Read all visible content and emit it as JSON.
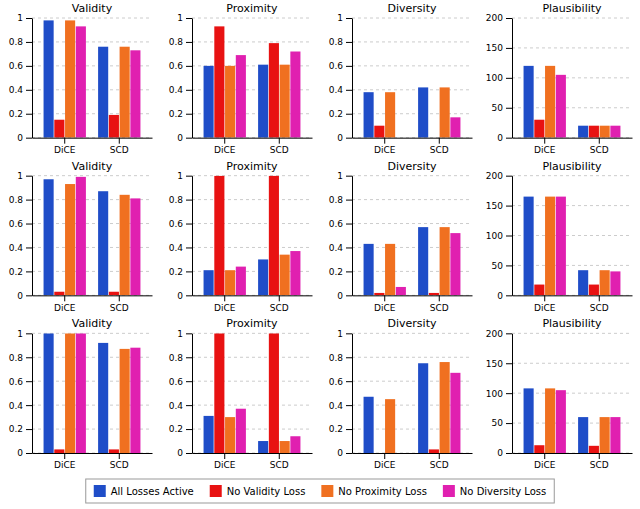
{
  "chart_data": [
    {
      "type": "bar",
      "title": "Validity",
      "categories": [
        "DiCE",
        "SCD"
      ],
      "series": [
        {
          "name": "All Losses Active",
          "color": "#1f4dc8",
          "values": [
            0.98,
            0.76
          ]
        },
        {
          "name": "No Validity Loss",
          "color": "#e81212",
          "values": [
            0.15,
            0.19
          ]
        },
        {
          "name": "No Proximity Loss",
          "color": "#f07020",
          "values": [
            0.98,
            0.76
          ]
        },
        {
          "name": "No Diversity Loss",
          "color": "#e020b0",
          "values": [
            0.93,
            0.73
          ]
        }
      ],
      "ylim": [
        0,
        1
      ],
      "yticks": [
        0,
        0.2,
        0.4,
        0.6,
        0.8,
        1
      ],
      "grid": true,
      "legend": "bottom"
    },
    {
      "type": "bar",
      "title": "Proximity",
      "categories": [
        "DiCE",
        "SCD"
      ],
      "series": [
        {
          "color": "#1f4dc8",
          "values": [
            0.6,
            0.61
          ]
        },
        {
          "color": "#e81212",
          "values": [
            0.93,
            0.79
          ]
        },
        {
          "color": "#f07020",
          "values": [
            0.6,
            0.61
          ]
        },
        {
          "color": "#e020b0",
          "values": [
            0.69,
            0.72
          ]
        }
      ],
      "ylim": [
        0,
        1
      ],
      "yticks": [
        0,
        0.2,
        0.4,
        0.6,
        0.8,
        1
      ],
      "grid": true
    },
    {
      "type": "bar",
      "title": "Diversity",
      "categories": [
        "DiCE",
        "SCD"
      ],
      "series": [
        {
          "color": "#1f4dc8",
          "values": [
            0.38,
            0.42
          ]
        },
        {
          "color": "#e81212",
          "values": [
            0.1,
            0.0
          ]
        },
        {
          "color": "#f07020",
          "values": [
            0.38,
            0.42
          ]
        },
        {
          "color": "#e020b0",
          "values": [
            0.0,
            0.17
          ]
        }
      ],
      "ylim": [
        0,
        1
      ],
      "yticks": [
        0,
        0.2,
        0.4,
        0.6,
        0.8,
        1
      ],
      "grid": true
    },
    {
      "type": "bar",
      "title": "Plausibility",
      "categories": [
        "DiCE",
        "SCD"
      ],
      "series": [
        {
          "color": "#1f4dc8",
          "values": [
            120,
            20
          ]
        },
        {
          "color": "#e81212",
          "values": [
            30,
            20
          ]
        },
        {
          "color": "#f07020",
          "values": [
            120,
            20
          ]
        },
        {
          "color": "#e020b0",
          "values": [
            105,
            20
          ]
        }
      ],
      "ylim": [
        0,
        200
      ],
      "yticks": [
        0,
        50,
        100,
        150,
        200
      ],
      "grid": true
    },
    {
      "type": "bar",
      "title": "Validity",
      "categories": [
        "DiCE",
        "SCD"
      ],
      "series": [
        {
          "color": "#1f4dc8",
          "values": [
            0.97,
            0.87
          ]
        },
        {
          "color": "#e81212",
          "values": [
            0.03,
            0.03
          ]
        },
        {
          "color": "#f07020",
          "values": [
            0.93,
            0.84
          ]
        },
        {
          "color": "#e020b0",
          "values": [
            0.99,
            0.81
          ]
        }
      ],
      "ylim": [
        0,
        1
      ],
      "yticks": [
        0,
        0.2,
        0.4,
        0.6,
        0.8,
        1
      ],
      "grid": true
    },
    {
      "type": "bar",
      "title": "Proximity",
      "categories": [
        "DiCE",
        "SCD"
      ],
      "series": [
        {
          "color": "#1f4dc8",
          "values": [
            0.21,
            0.3
          ]
        },
        {
          "color": "#e81212",
          "values": [
            1.0,
            1.0
          ]
        },
        {
          "color": "#f07020",
          "values": [
            0.21,
            0.34
          ]
        },
        {
          "color": "#e020b0",
          "values": [
            0.24,
            0.37
          ]
        }
      ],
      "ylim": [
        0,
        1
      ],
      "yticks": [
        0,
        0.2,
        0.4,
        0.6,
        0.8,
        1
      ],
      "grid": true
    },
    {
      "type": "bar",
      "title": "Diversity",
      "categories": [
        "DiCE",
        "SCD"
      ],
      "series": [
        {
          "color": "#1f4dc8",
          "values": [
            0.43,
            0.57
          ]
        },
        {
          "color": "#e81212",
          "values": [
            0.02,
            0.02
          ]
        },
        {
          "color": "#f07020",
          "values": [
            0.43,
            0.57
          ]
        },
        {
          "color": "#e020b0",
          "values": [
            0.07,
            0.52
          ]
        }
      ],
      "ylim": [
        0,
        1
      ],
      "yticks": [
        0,
        0.2,
        0.4,
        0.6,
        0.8,
        1
      ],
      "grid": true
    },
    {
      "type": "bar",
      "title": "Plausibility",
      "categories": [
        "DiCE",
        "SCD"
      ],
      "series": [
        {
          "color": "#1f4dc8",
          "values": [
            165,
            42
          ]
        },
        {
          "color": "#e81212",
          "values": [
            18,
            18
          ]
        },
        {
          "color": "#f07020",
          "values": [
            165,
            42
          ]
        },
        {
          "color": "#e020b0",
          "values": [
            165,
            40
          ]
        }
      ],
      "ylim": [
        0,
        200
      ],
      "yticks": [
        0,
        50,
        100,
        150,
        200
      ],
      "grid": true
    },
    {
      "type": "bar",
      "title": "Validity",
      "categories": [
        "DiCE",
        "SCD"
      ],
      "series": [
        {
          "color": "#1f4dc8",
          "values": [
            1.0,
            0.92
          ]
        },
        {
          "color": "#e81212",
          "values": [
            0.03,
            0.03
          ]
        },
        {
          "color": "#f07020",
          "values": [
            1.0,
            0.87
          ]
        },
        {
          "color": "#e020b0",
          "values": [
            1.0,
            0.88
          ]
        }
      ],
      "ylim": [
        0,
        1
      ],
      "yticks": [
        0,
        0.2,
        0.4,
        0.6,
        0.8,
        1
      ],
      "grid": true
    },
    {
      "type": "bar",
      "title": "Proximity",
      "categories": [
        "DiCE",
        "SCD"
      ],
      "series": [
        {
          "color": "#1f4dc8",
          "values": [
            0.31,
            0.1
          ]
        },
        {
          "color": "#e81212",
          "values": [
            1.0,
            1.0
          ]
        },
        {
          "color": "#f07020",
          "values": [
            0.3,
            0.1
          ]
        },
        {
          "color": "#e020b0",
          "values": [
            0.37,
            0.14
          ]
        }
      ],
      "ylim": [
        0,
        1
      ],
      "yticks": [
        0,
        0.2,
        0.4,
        0.6,
        0.8,
        1
      ],
      "grid": true
    },
    {
      "type": "bar",
      "title": "Diversity",
      "categories": [
        "DiCE",
        "SCD"
      ],
      "series": [
        {
          "color": "#1f4dc8",
          "values": [
            0.47,
            0.75
          ]
        },
        {
          "color": "#e81212",
          "values": [
            0.0,
            0.03
          ]
        },
        {
          "color": "#f07020",
          "values": [
            0.45,
            0.76
          ]
        },
        {
          "color": "#e020b0",
          "values": [
            0.0,
            0.67
          ]
        }
      ],
      "ylim": [
        0,
        1
      ],
      "yticks": [
        0,
        0.2,
        0.4,
        0.6,
        0.8,
        1
      ],
      "grid": true
    },
    {
      "type": "bar",
      "title": "Plausibility",
      "categories": [
        "DiCE",
        "SCD"
      ],
      "series": [
        {
          "color": "#1f4dc8",
          "values": [
            108,
            60
          ]
        },
        {
          "color": "#e81212",
          "values": [
            13,
            12
          ]
        },
        {
          "color": "#f07020",
          "values": [
            108,
            60
          ]
        },
        {
          "color": "#e020b0",
          "values": [
            105,
            60
          ]
        }
      ],
      "ylim": [
        0,
        200
      ],
      "yticks": [
        0,
        50,
        100,
        150,
        200
      ],
      "grid": true
    }
  ]
}
